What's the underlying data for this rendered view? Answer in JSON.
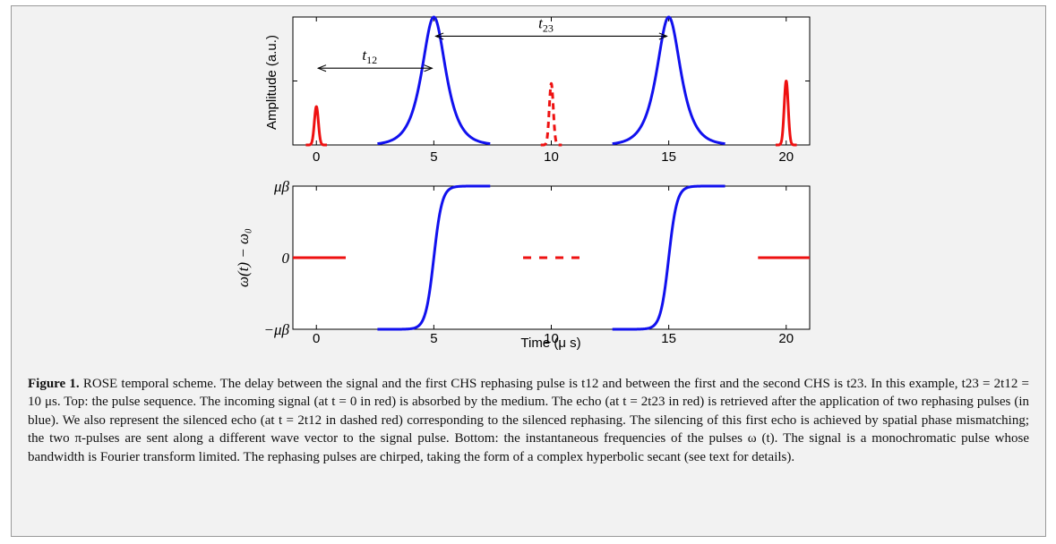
{
  "chart_data": [
    {
      "type": "line",
      "title": "",
      "xlabel": "",
      "ylabel": "Amplitude (a.u.)",
      "xlim": [
        -1,
        21
      ],
      "ylim": [
        0,
        1
      ],
      "xticks": [
        "0",
        "5",
        "10",
        "15",
        "20"
      ],
      "grid": false,
      "series": [
        {
          "color": "#ee1111",
          "style": "solid",
          "shape": "gaussian",
          "center": 0,
          "peak": 0.3,
          "width": 0.12
        },
        {
          "color": "#1111ee",
          "style": "solid",
          "shape": "sech",
          "center": 5,
          "peak": 1.0,
          "width": 0.45
        },
        {
          "color": "#ee1111",
          "style": "dashed",
          "shape": "gaussian",
          "center": 10,
          "peak": 0.48,
          "width": 0.12
        },
        {
          "color": "#1111ee",
          "style": "solid",
          "shape": "sech",
          "center": 15,
          "peak": 1.0,
          "width": 0.45
        },
        {
          "color": "#ee1111",
          "style": "solid",
          "shape": "gaussian",
          "center": 20,
          "peak": 0.5,
          "width": 0.12
        }
      ],
      "annotations": [
        {
          "label": "t",
          "sub": "12",
          "from": 0,
          "to": 5,
          "y": 0.6
        },
        {
          "label": "t",
          "sub": "23",
          "from": 5,
          "to": 15,
          "y": 0.85
        }
      ]
    },
    {
      "type": "line",
      "title": "",
      "xlabel": "Time (μ s)",
      "ylabel": "ω(t) − ω₀",
      "xlim": [
        -1,
        21
      ],
      "ylim": [
        -1,
        1
      ],
      "xticks": [
        "0",
        "5",
        "10",
        "15",
        "20"
      ],
      "yticks": [
        "−μβ",
        "0",
        "μβ"
      ],
      "grid": false,
      "series": [
        {
          "color": "#ee1111",
          "style": "solid",
          "shape": "flat",
          "x": [
            -1,
            1.25
          ],
          "y": 0
        },
        {
          "color": "#1111ee",
          "style": "solid",
          "shape": "tanh",
          "center": 5,
          "x": [
            2.6,
            7.4
          ],
          "width": 0.35
        },
        {
          "color": "#ee1111",
          "style": "dashed",
          "shape": "flat",
          "x": [
            8.8,
            11.2
          ],
          "y": 0
        },
        {
          "color": "#1111ee",
          "style": "solid",
          "shape": "tanh",
          "center": 15,
          "x": [
            12.6,
            17.4
          ],
          "width": 0.35
        },
        {
          "color": "#ee1111",
          "style": "solid",
          "shape": "flat",
          "x": [
            18.8,
            21
          ],
          "y": 0
        }
      ]
    }
  ],
  "caption": {
    "label": "Figure 1.",
    "text": "ROSE temporal scheme. The delay between the signal and the first CHS rephasing pulse is t12 and between the first and the second CHS is t23. In this example, t23 = 2t12 = 10 μs. Top: the pulse sequence. The incoming signal (at t = 0 in red) is absorbed by the medium. The echo (at t = 2t23 in red) is retrieved after the application of two rephasing pulses (in blue). We also represent the silenced echo (at t = 2t12 in dashed red) corresponding to the silenced rephasing. The silencing of this first echo is achieved by spatial phase mismatching; the two π-pulses are sent along a different wave vector to the signal pulse. Bottom: the instantaneous frequencies of the pulses ω (t). The signal is a monochromatic pulse whose bandwidth is Fourier transform limited. The rephasing pulses are chirped, taking the form of a complex hyperbolic secant (see text for details)."
  }
}
